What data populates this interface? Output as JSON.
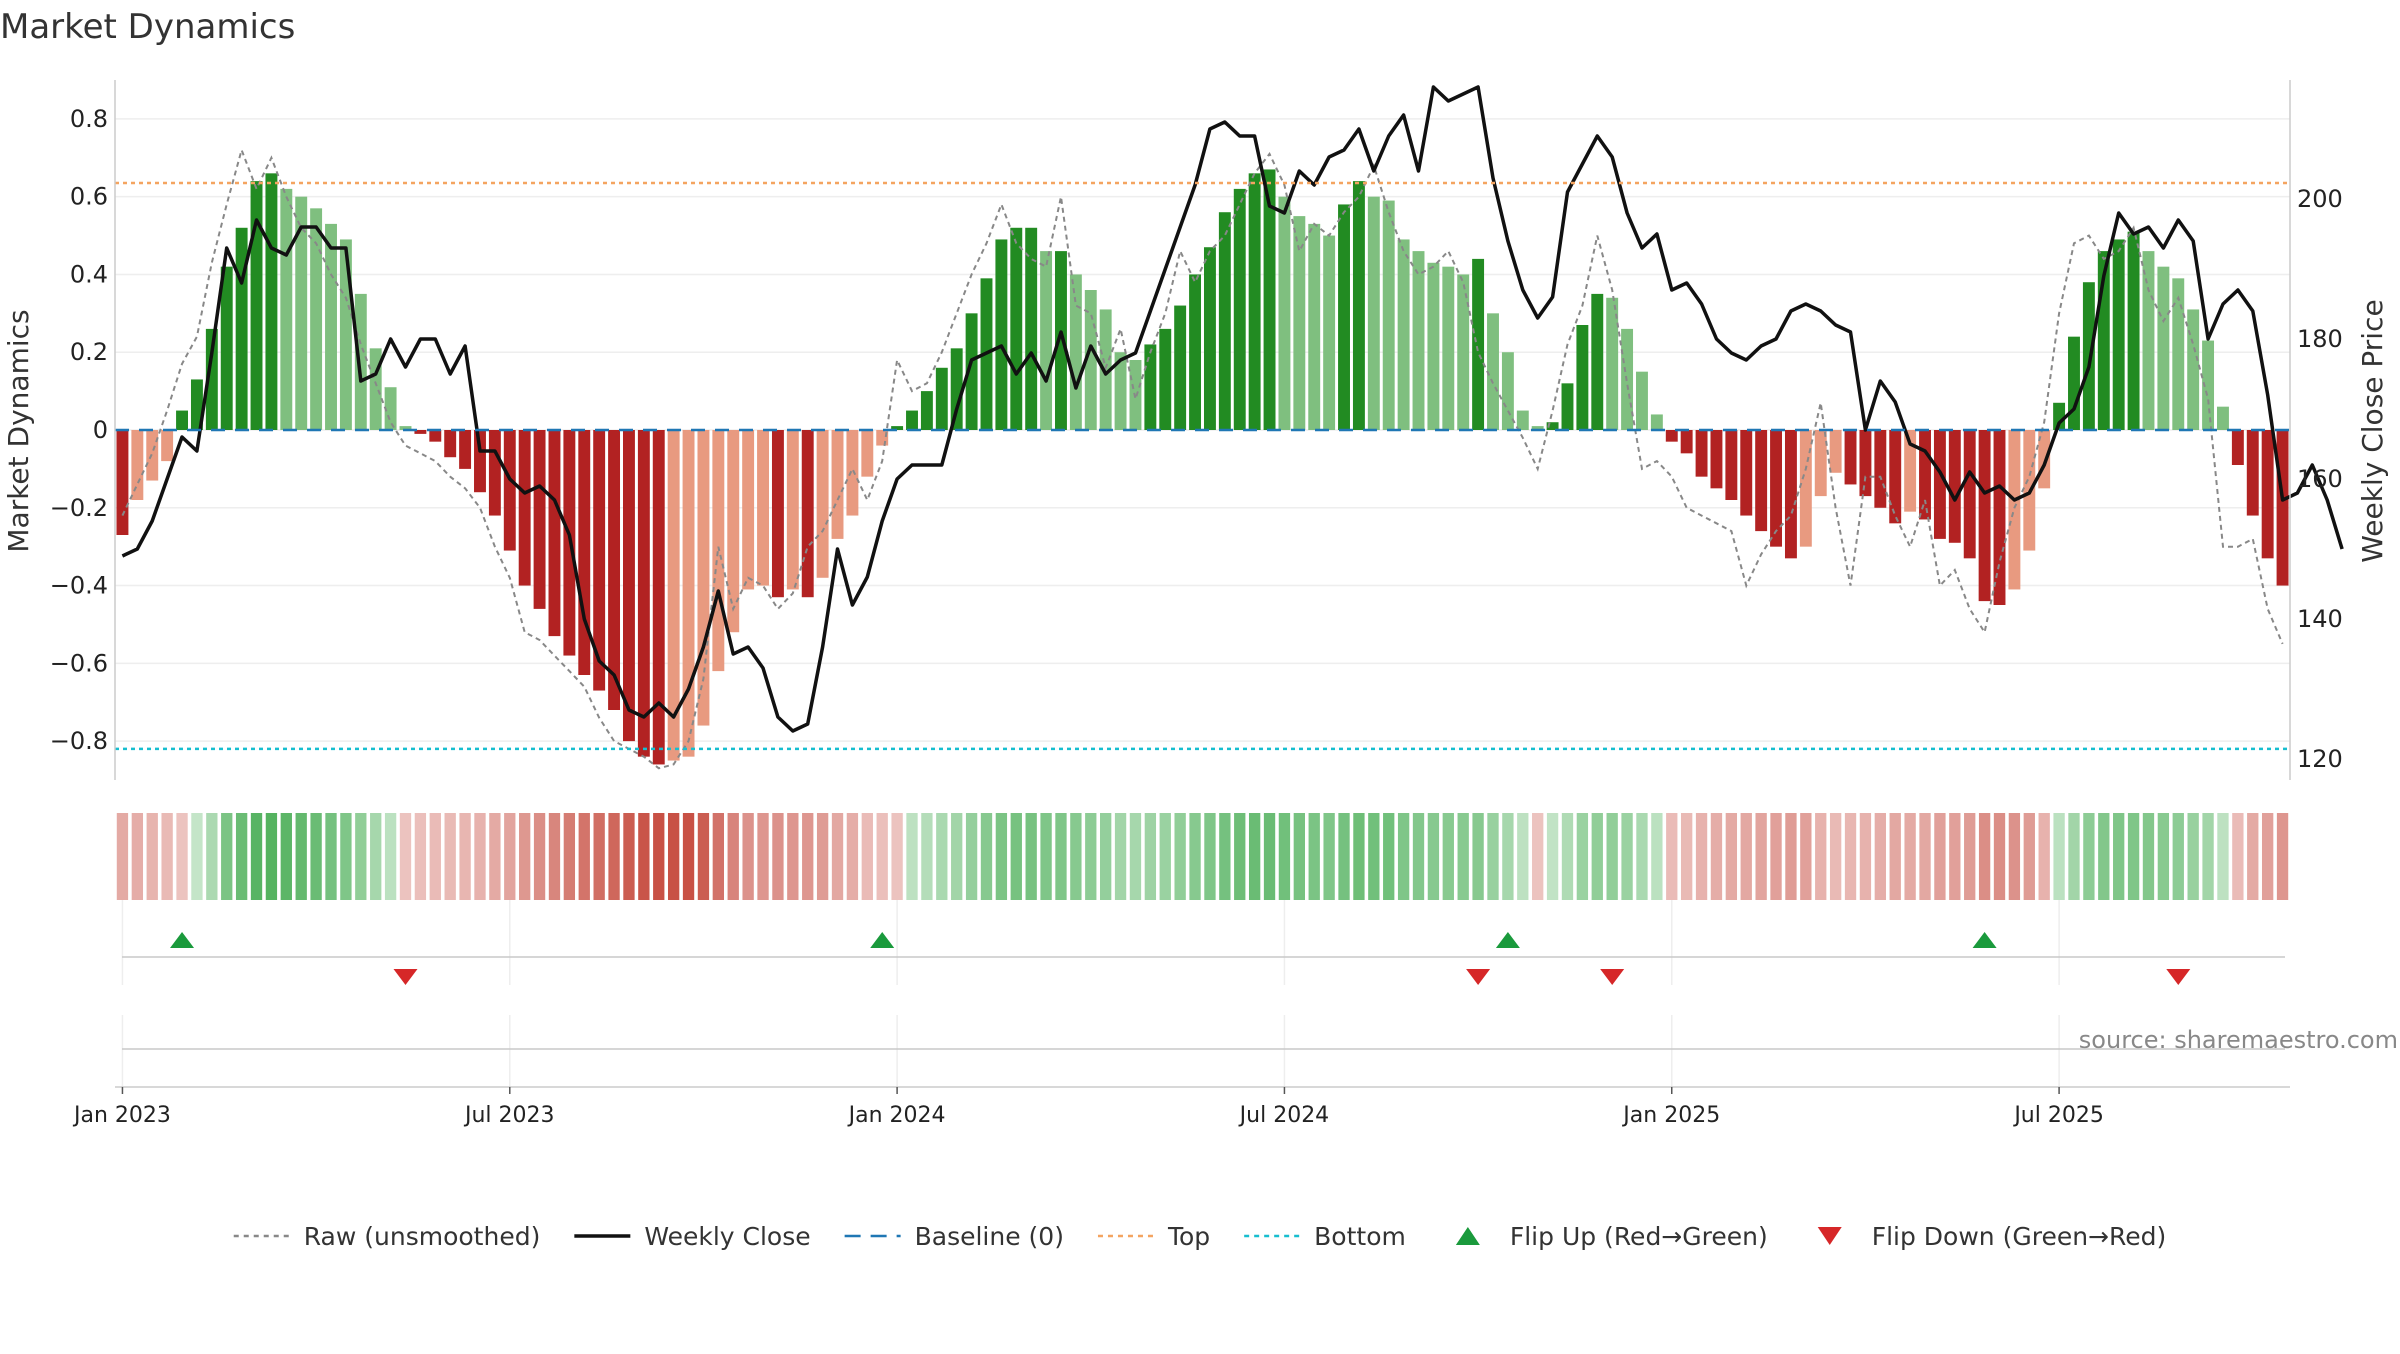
{
  "chart_data": {
    "type": "bar",
    "title": "Market Dynamics",
    "ylabel": "Market Dynamics",
    "y2label": "Weekly Close Price",
    "source": "source: sharemaestro.com",
    "ylim": [
      -0.9,
      0.9
    ],
    "y2lim": [
      117,
      217
    ],
    "yticks": [
      {
        "v": 0.8,
        "label": "0.8"
      },
      {
        "v": 0.6,
        "label": "0.6"
      },
      {
        "v": 0.4,
        "label": "0.4"
      },
      {
        "v": 0.2,
        "label": "0.2"
      },
      {
        "v": 0,
        "label": "0"
      },
      {
        "v": -0.2,
        "label": "−0.2"
      },
      {
        "v": -0.4,
        "label": "−0.4"
      },
      {
        "v": -0.6,
        "label": "−0.6"
      },
      {
        "v": -0.8,
        "label": "−0.8"
      }
    ],
    "y2ticks": [
      {
        "v": 200,
        "label": "200"
      },
      {
        "v": 180,
        "label": "180"
      },
      {
        "v": 160,
        "label": "160"
      },
      {
        "v": 140,
        "label": "140"
      },
      {
        "v": 120,
        "label": "120"
      }
    ],
    "xticks": [
      {
        "week": 1,
        "label": "Jan 2023"
      },
      {
        "week": 27,
        "label": "Jul 2023"
      },
      {
        "week": 53,
        "label": "Jan 2024"
      },
      {
        "week": 79,
        "label": "Jul 2024"
      },
      {
        "week": 105,
        "label": "Jan 2025"
      },
      {
        "week": 131,
        "label": "Jul 2025"
      }
    ],
    "top": 0.635,
    "bottom": -0.82,
    "baseline": 0,
    "colors": {
      "pos_strong": "#228b22",
      "pos_weak": "#7fbf7f",
      "neg_strong": "#b22222",
      "neg_weak": "#e89a80",
      "raw": "#888888",
      "close": "#111111",
      "baseline": "#1f77b4",
      "top": "#f4a460",
      "bottom": "#17becf",
      "flip_up": "#1a9a3c",
      "flip_down": "#d62728"
    },
    "series": [
      {
        "name": "Market Dynamics (smoothed)",
        "values": [
          -0.27,
          -0.18,
          -0.13,
          -0.08,
          0.05,
          0.13,
          0.26,
          0.42,
          0.52,
          0.64,
          0.66,
          0.62,
          0.6,
          0.57,
          0.53,
          0.49,
          0.35,
          0.21,
          0.11,
          0.01,
          -0.01,
          -0.03,
          -0.07,
          -0.1,
          -0.16,
          -0.22,
          -0.31,
          -0.4,
          -0.46,
          -0.53,
          -0.58,
          -0.63,
          -0.67,
          -0.72,
          -0.8,
          -0.84,
          -0.86,
          -0.85,
          -0.84,
          -0.76,
          -0.62,
          -0.52,
          -0.41,
          -0.4,
          -0.43,
          -0.41,
          -0.43,
          -0.38,
          -0.28,
          -0.22,
          -0.12,
          -0.04,
          0.01,
          0.05,
          0.1,
          0.16,
          0.21,
          0.3,
          0.39,
          0.49,
          0.52,
          0.52,
          0.46,
          0.46,
          0.4,
          0.36,
          0.31,
          0.2,
          0.18,
          0.22,
          0.26,
          0.32,
          0.4,
          0.47,
          0.56,
          0.62,
          0.66,
          0.67,
          0.6,
          0.55,
          0.53,
          0.5,
          0.58,
          0.64,
          0.6,
          0.59,
          0.49,
          0.46,
          0.43,
          0.42,
          0.4,
          0.44,
          0.3,
          0.2,
          0.05,
          0.01,
          0.02,
          0.12,
          0.27,
          0.35,
          0.34,
          0.26,
          0.15,
          0.04,
          -0.03,
          -0.06,
          -0.12,
          -0.15,
          -0.18,
          -0.22,
          -0.26,
          -0.3,
          -0.33,
          -0.3,
          -0.17,
          -0.11,
          -0.14,
          -0.17,
          -0.2,
          -0.24,
          -0.21,
          -0.23,
          -0.28,
          -0.29,
          -0.33,
          -0.44,
          -0.45,
          -0.41,
          -0.31,
          -0.15,
          0.07,
          0.24,
          0.38,
          0.46,
          0.49,
          0.51,
          0.46,
          0.42,
          0.39,
          0.31,
          0.23,
          0.06,
          -0.09,
          -0.22,
          -0.33,
          -0.4
        ]
      },
      {
        "name": "Raw (unsmoothed)",
        "values": [
          -0.22,
          -0.14,
          -0.06,
          0.05,
          0.17,
          0.24,
          0.43,
          0.58,
          0.72,
          0.62,
          0.7,
          0.6,
          0.52,
          0.48,
          0.4,
          0.34,
          0.22,
          0.12,
          0.02,
          -0.04,
          -0.06,
          -0.08,
          -0.12,
          -0.15,
          -0.2,
          -0.3,
          -0.38,
          -0.52,
          -0.54,
          -0.58,
          -0.62,
          -0.66,
          -0.74,
          -0.8,
          -0.82,
          -0.84,
          -0.87,
          -0.86,
          -0.8,
          -0.64,
          -0.3,
          -0.46,
          -0.38,
          -0.4,
          -0.46,
          -0.42,
          -0.3,
          -0.26,
          -0.18,
          -0.1,
          -0.18,
          -0.08,
          0.18,
          0.1,
          0.12,
          0.2,
          0.3,
          0.4,
          0.48,
          0.58,
          0.48,
          0.44,
          0.42,
          0.6,
          0.32,
          0.3,
          0.16,
          0.26,
          0.08,
          0.2,
          0.3,
          0.46,
          0.38,
          0.46,
          0.5,
          0.58,
          0.66,
          0.71,
          0.63,
          0.46,
          0.53,
          0.5,
          0.56,
          0.6,
          0.68,
          0.56,
          0.46,
          0.4,
          0.42,
          0.46,
          0.38,
          0.2,
          0.12,
          0.05,
          -0.02,
          -0.1,
          0.05,
          0.22,
          0.32,
          0.5,
          0.36,
          0.12,
          -0.1,
          -0.08,
          -0.12,
          -0.2,
          -0.22,
          -0.24,
          -0.26,
          -0.4,
          -0.32,
          -0.26,
          -0.22,
          -0.1,
          0.07,
          -0.2,
          -0.4,
          -0.12,
          -0.12,
          -0.22,
          -0.3,
          -0.18,
          -0.4,
          -0.36,
          -0.46,
          -0.52,
          -0.34,
          -0.2,
          -0.12,
          0.02,
          0.3,
          0.48,
          0.5,
          0.44,
          0.46,
          0.52,
          0.36,
          0.28,
          0.34,
          0.22,
          0.08,
          -0.3,
          -0.3,
          -0.28,
          -0.46,
          -0.55
        ]
      },
      {
        "name": "Weekly Close",
        "values": [
          149,
          150,
          154,
          160,
          166,
          164,
          178,
          193,
          188,
          197,
          193,
          192,
          196,
          196,
          193,
          193,
          174,
          175,
          180,
          176,
          180,
          180,
          175,
          179,
          164,
          164,
          160,
          158,
          159,
          157,
          152,
          140,
          134,
          132,
          127,
          126,
          128,
          126,
          130,
          136,
          144,
          135,
          136,
          133,
          126,
          124,
          125,
          136,
          150,
          142,
          146,
          154,
          160,
          162,
          162,
          162,
          170,
          177,
          178,
          179,
          175,
          178,
          174,
          181,
          173,
          179,
          175,
          177,
          178,
          184,
          190,
          196,
          202,
          210,
          211,
          209,
          209,
          199,
          198,
          204,
          202,
          206,
          207,
          210,
          204,
          209,
          212,
          204,
          216,
          214,
          215,
          216,
          203,
          194,
          187,
          183,
          186,
          201,
          205,
          209,
          206,
          198,
          193,
          195,
          187,
          188,
          185,
          180,
          178,
          177,
          179,
          180,
          184,
          185,
          184,
          182,
          181,
          167,
          174,
          171,
          165,
          164,
          161,
          157,
          161,
          158,
          159,
          157,
          158,
          162,
          168,
          170,
          176,
          189,
          198,
          195,
          196,
          193,
          197,
          194,
          180,
          185,
          187,
          184,
          172,
          157,
          158,
          162,
          157,
          150
        ]
      }
    ],
    "regime": [
      -0.34,
      -0.32,
      -0.29,
      -0.26,
      -0.2,
      0.2,
      0.34,
      0.62,
      0.72,
      0.82,
      0.84,
      0.8,
      0.76,
      0.72,
      0.66,
      0.6,
      0.5,
      0.38,
      0.26,
      -0.2,
      -0.22,
      -0.24,
      -0.26,
      -0.28,
      -0.3,
      -0.34,
      -0.38,
      -0.44,
      -0.5,
      -0.55,
      -0.6,
      -0.64,
      -0.68,
      -0.72,
      -0.78,
      -0.82,
      -0.84,
      -0.84,
      -0.84,
      -0.78,
      -0.66,
      -0.56,
      -0.48,
      -0.46,
      -0.48,
      -0.46,
      -0.46,
      -0.42,
      -0.36,
      -0.32,
      -0.24,
      -0.22,
      -0.2,
      0.24,
      0.3,
      0.36,
      0.4,
      0.48,
      0.56,
      0.62,
      0.64,
      0.64,
      0.6,
      0.6,
      0.56,
      0.52,
      0.48,
      0.4,
      0.38,
      0.42,
      0.44,
      0.5,
      0.56,
      0.6,
      0.66,
      0.7,
      0.72,
      0.72,
      0.68,
      0.64,
      0.62,
      0.6,
      0.66,
      0.7,
      0.68,
      0.68,
      0.6,
      0.58,
      0.56,
      0.55,
      0.54,
      0.56,
      0.46,
      0.38,
      0.24,
      -0.2,
      0.22,
      0.32,
      0.44,
      0.5,
      0.5,
      0.44,
      0.36,
      0.26,
      -0.24,
      -0.26,
      -0.3,
      -0.32,
      -0.34,
      -0.36,
      -0.38,
      -0.4,
      -0.42,
      -0.4,
      -0.3,
      -0.26,
      -0.28,
      -0.3,
      -0.32,
      -0.36,
      -0.34,
      -0.36,
      -0.4,
      -0.4,
      -0.42,
      -0.5,
      -0.5,
      -0.48,
      -0.42,
      -0.3,
      0.26,
      0.4,
      0.52,
      0.58,
      0.6,
      0.6,
      0.58,
      0.55,
      0.52,
      0.46,
      0.4,
      0.24,
      -0.24,
      -0.34,
      -0.4,
      -0.46
    ],
    "flips": [
      {
        "week": 5,
        "dir": "up"
      },
      {
        "week": 20,
        "dir": "down"
      },
      {
        "week": 52,
        "dir": "up"
      },
      {
        "week": 92,
        "dir": "down"
      },
      {
        "week": 94,
        "dir": "up"
      },
      {
        "week": 101,
        "dir": "down"
      },
      {
        "week": 126,
        "dir": "up"
      },
      {
        "week": 139,
        "dir": "down"
      }
    ],
    "legend_position": "bottom-center",
    "legend": [
      {
        "key": "raw",
        "label": "Raw (unsmoothed)",
        "style": "dotted-line"
      },
      {
        "key": "close",
        "label": "Weekly Close",
        "style": "solid-line"
      },
      {
        "key": "baseline",
        "label": "Baseline (0)",
        "style": "dashed-line"
      },
      {
        "key": "top",
        "label": "Top",
        "style": "dotted-line"
      },
      {
        "key": "bottom",
        "label": "Bottom",
        "style": "dotted-line"
      },
      {
        "key": "flip_up",
        "label": "Flip Up (Red→Green)",
        "style": "triangle-up"
      },
      {
        "key": "flip_down",
        "label": "Flip Down (Green→Red)",
        "style": "triangle-down"
      }
    ],
    "grid": true
  }
}
